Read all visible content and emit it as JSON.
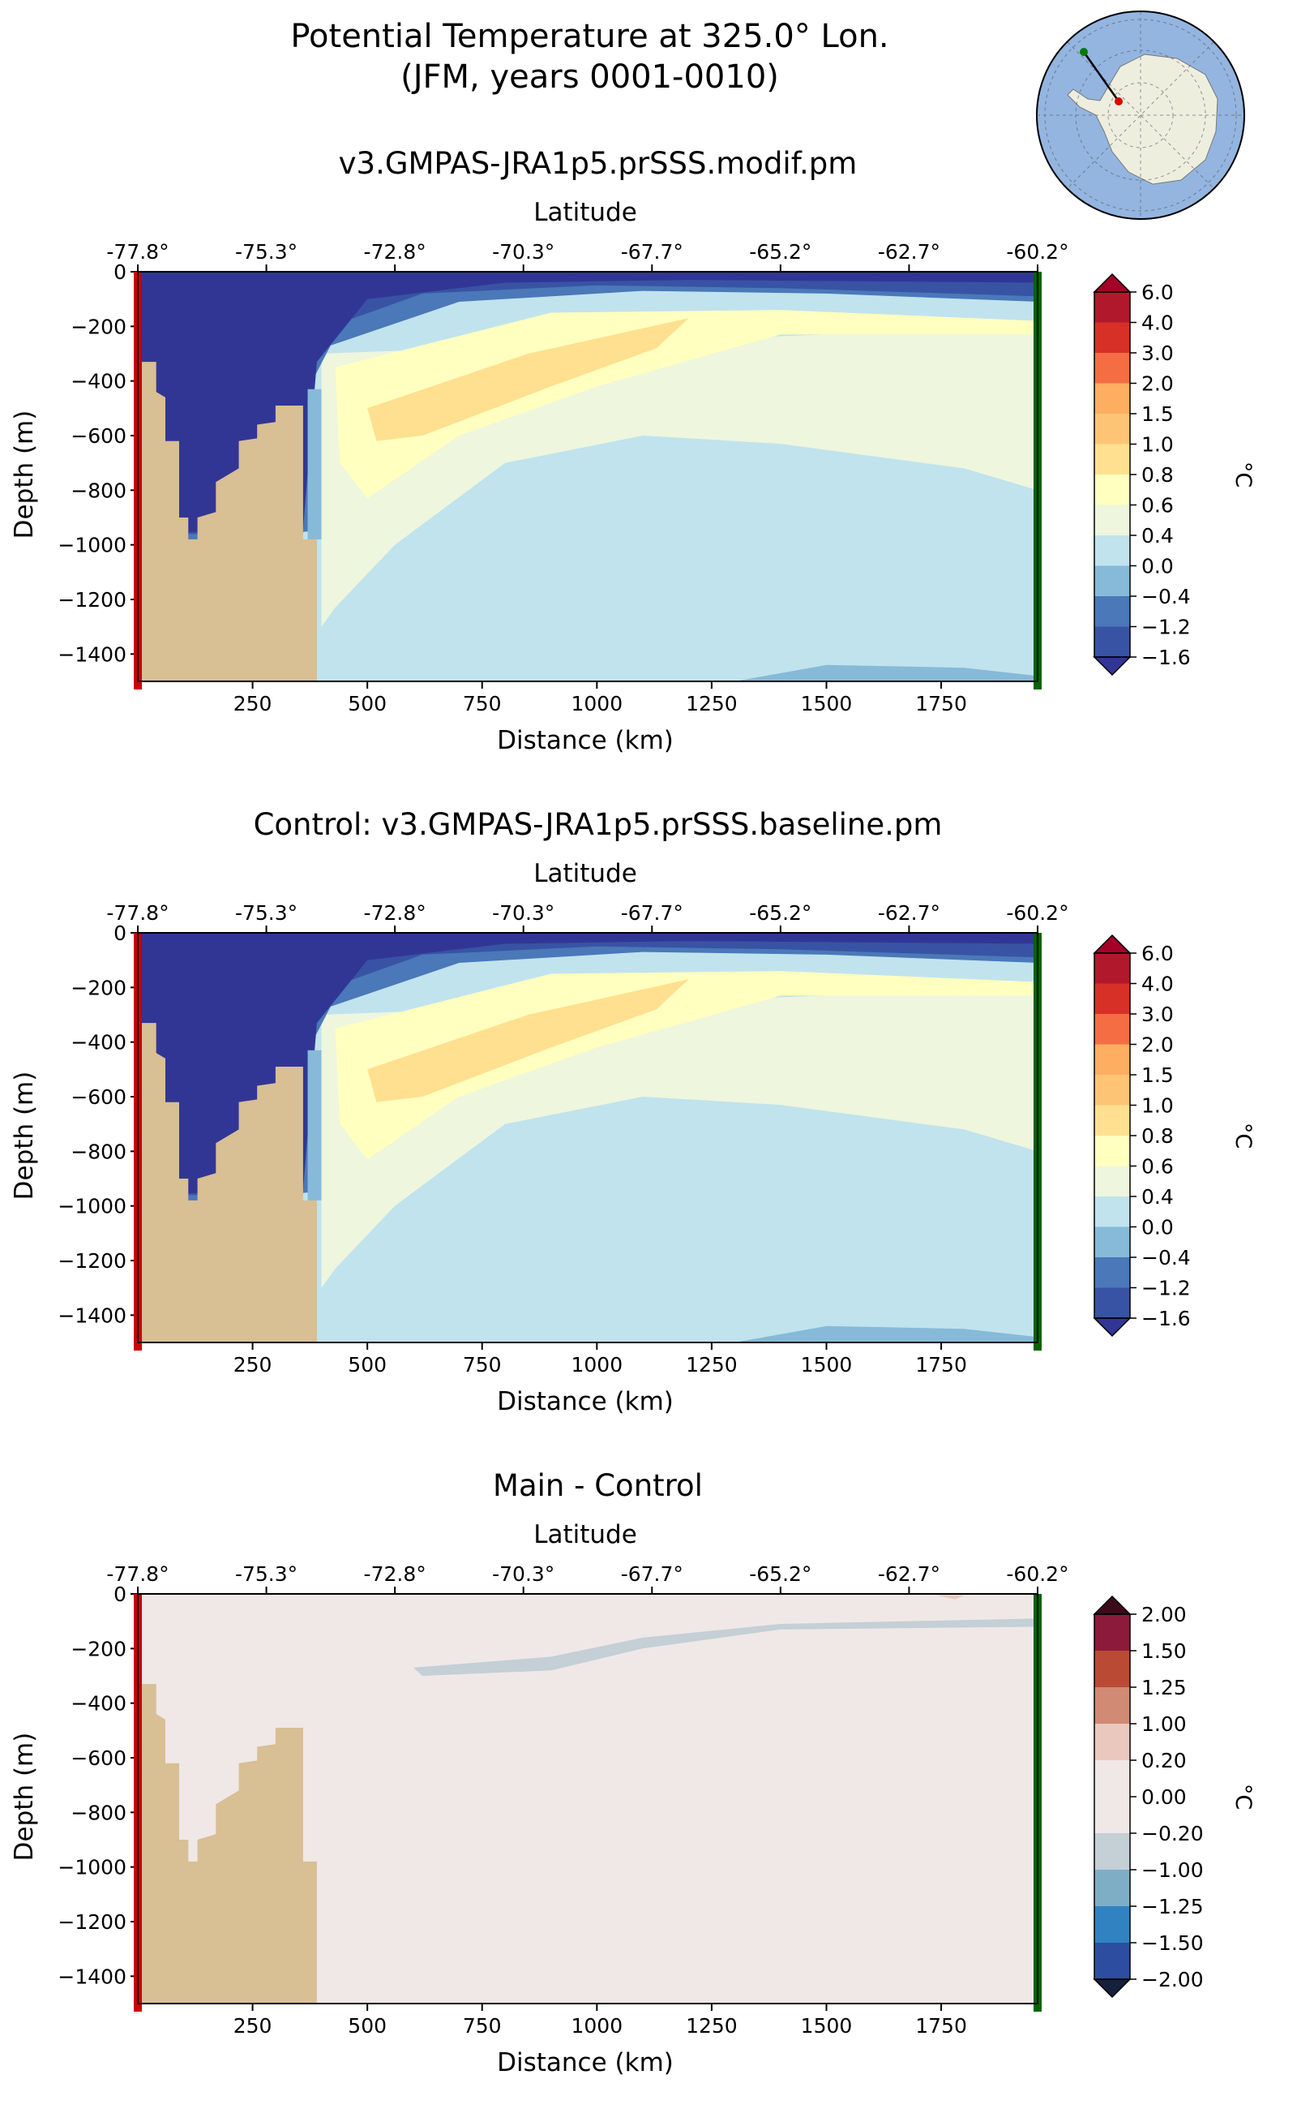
{
  "figure": {
    "title_line1": "Potential Temperature at 325.0° Lon.",
    "title_line2": "(JFM, years 0001-0010)"
  },
  "inset_map": {
    "description_icon": "antarctica-locator-map-icon",
    "start_color": "#cc0000",
    "end_color": "#007a00"
  },
  "colors": {
    "land": "#d8bf94",
    "start_marker": "#cc0000",
    "end_marker": "#006400"
  },
  "chart_data": [
    {
      "type": "heatmap",
      "title": "v3.GMPAS-JRA1p5.prSSS.modif.pm",
      "xlabel": "Distance (km)",
      "ylabel": "Depth (m)",
      "top_axis_label": "Latitude",
      "xlim": [
        0,
        1960
      ],
      "ylim": [
        -1500,
        0
      ],
      "x_ticks": [
        250,
        500,
        750,
        1000,
        1250,
        1500,
        1750
      ],
      "x_tick_labels": [
        "250",
        "500",
        "750",
        "1000",
        "1250",
        "1500",
        "1750"
      ],
      "y_ticks": [
        0,
        -200,
        -400,
        -600,
        -800,
        -1000,
        -1200,
        -1400
      ],
      "y_tick_labels": [
        "0",
        "−200",
        "−400",
        "−600",
        "−800",
        "−1000",
        "−1200",
        "−1400"
      ],
      "lat_tick_labels": [
        "-77.8°",
        "-75.3°",
        "-72.8°",
        "-70.3°",
        "-67.7°",
        "-65.2°",
        "-62.7°",
        "-60.2°"
      ],
      "colorbar": {
        "label": "°C",
        "levels": [
          "6.0",
          "4.0",
          "3.0",
          "2.0",
          "1.5",
          "1.0",
          "0.8",
          "0.6",
          "0.4",
          "0.0",
          "−0.4",
          "−1.2",
          "−1.6"
        ],
        "colors": [
          "#b2182b",
          "#d73027",
          "#f46d43",
          "#fdae61",
          "#fec476",
          "#fee090",
          "#ffffbf",
          "#eef6dd",
          "#c0e3ee",
          "#86bad8",
          "#4a78b8",
          "#3853a4"
        ],
        "over_color": "#a50026",
        "under_color": "#313695"
      }
    },
    {
      "type": "heatmap",
      "title": "Control: v3.GMPAS-JRA1p5.prSSS.baseline.pm",
      "xlabel": "Distance (km)",
      "ylabel": "Depth (m)",
      "top_axis_label": "Latitude",
      "xlim": [
        0,
        1960
      ],
      "ylim": [
        -1500,
        0
      ],
      "x_ticks": [
        250,
        500,
        750,
        1000,
        1250,
        1500,
        1750
      ],
      "x_tick_labels": [
        "250",
        "500",
        "750",
        "1000",
        "1250",
        "1500",
        "1750"
      ],
      "y_ticks": [
        0,
        -200,
        -400,
        -600,
        -800,
        -1000,
        -1200,
        -1400
      ],
      "y_tick_labels": [
        "0",
        "−200",
        "−400",
        "−600",
        "−800",
        "−1000",
        "−1200",
        "−1400"
      ],
      "lat_tick_labels": [
        "-77.8°",
        "-75.3°",
        "-72.8°",
        "-70.3°",
        "-67.7°",
        "-65.2°",
        "-62.7°",
        "-60.2°"
      ],
      "colorbar": {
        "label": "°C",
        "levels": [
          "6.0",
          "4.0",
          "3.0",
          "2.0",
          "1.5",
          "1.0",
          "0.8",
          "0.6",
          "0.4",
          "0.0",
          "−0.4",
          "−1.2",
          "−1.6"
        ],
        "colors": [
          "#b2182b",
          "#d73027",
          "#f46d43",
          "#fdae61",
          "#fec476",
          "#fee090",
          "#ffffbf",
          "#eef6dd",
          "#c0e3ee",
          "#86bad8",
          "#4a78b8",
          "#3853a4"
        ],
        "over_color": "#a50026",
        "under_color": "#313695"
      }
    },
    {
      "type": "heatmap",
      "title": "Main - Control",
      "xlabel": "Distance (km)",
      "ylabel": "Depth (m)",
      "top_axis_label": "Latitude",
      "xlim": [
        0,
        1960
      ],
      "ylim": [
        -1500,
        0
      ],
      "x_ticks": [
        250,
        500,
        750,
        1000,
        1250,
        1500,
        1750
      ],
      "x_tick_labels": [
        "250",
        "500",
        "750",
        "1000",
        "1250",
        "1500",
        "1750"
      ],
      "y_ticks": [
        0,
        -200,
        -400,
        -600,
        -800,
        -1000,
        -1200,
        -1400
      ],
      "y_tick_labels": [
        "0",
        "−200",
        "−400",
        "−600",
        "−800",
        "−1000",
        "−1200",
        "−1400"
      ],
      "lat_tick_labels": [
        "-77.8°",
        "-75.3°",
        "-72.8°",
        "-70.3°",
        "-67.7°",
        "-65.2°",
        "-62.7°",
        "-60.2°"
      ],
      "colorbar": {
        "label": "°C",
        "levels": [
          "2.00",
          "1.50",
          "1.25",
          "1.00",
          "0.20",
          "0.00",
          "−0.20",
          "−1.00",
          "−1.25",
          "−1.50",
          "−2.00"
        ],
        "colors": [
          "#8c1a3a",
          "#ba4a33",
          "#d18a73",
          "#ebc8bd",
          "#efe8e7",
          "#efe8e7",
          "#c4cfd6",
          "#7eaec6",
          "#3083c0",
          "#2d4ea0"
        ],
        "over_color": "#3b0c1a",
        "under_color": "#14213d"
      }
    }
  ]
}
